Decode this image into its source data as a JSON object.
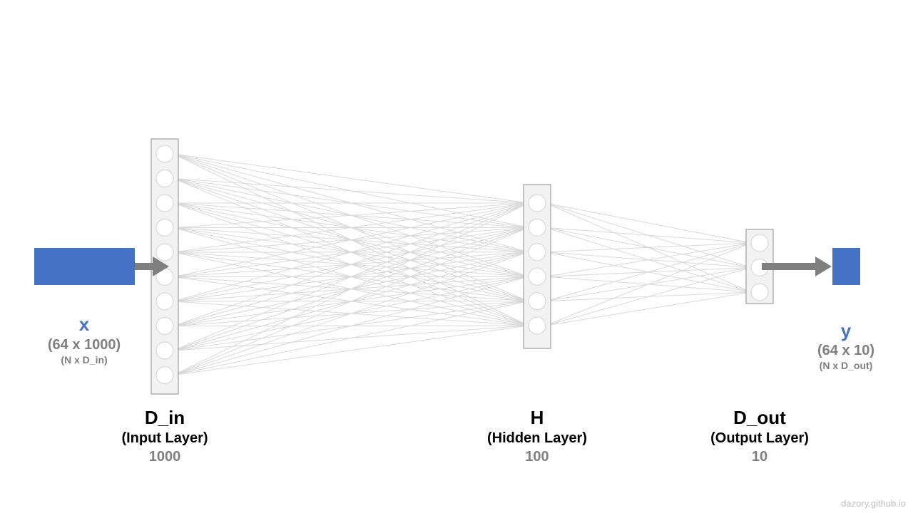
{
  "colors": {
    "io_block": "#4472c4",
    "arrow": "#7f7f7f",
    "layer_fill": "#f2f2f2",
    "layer_border": "#8c8c8c",
    "node_fill": "#ffffff",
    "node_stroke": "#d9d9d9",
    "connection": "#d9d9d9",
    "var_label": "#4472c4",
    "muted_text": "#7f7f7f"
  },
  "input": {
    "name": "x",
    "shape": "(64 x 1000)",
    "dims": "(N x D_in)"
  },
  "output": {
    "name": "y",
    "shape": "(64 x 10)",
    "dims": "(N x D_out)"
  },
  "layers": [
    {
      "id": "input-layer",
      "name": "D_in",
      "desc": "(Input Layer)",
      "size": "1000",
      "drawn_nodes": 10
    },
    {
      "id": "hidden-layer",
      "name": "H",
      "desc": "(Hidden Layer)",
      "size": "100",
      "drawn_nodes": 6
    },
    {
      "id": "output-layer",
      "name": "D_out",
      "desc": "(Output Layer)",
      "size": "10",
      "drawn_nodes": 3
    }
  ],
  "watermark": "dazory.github.io"
}
